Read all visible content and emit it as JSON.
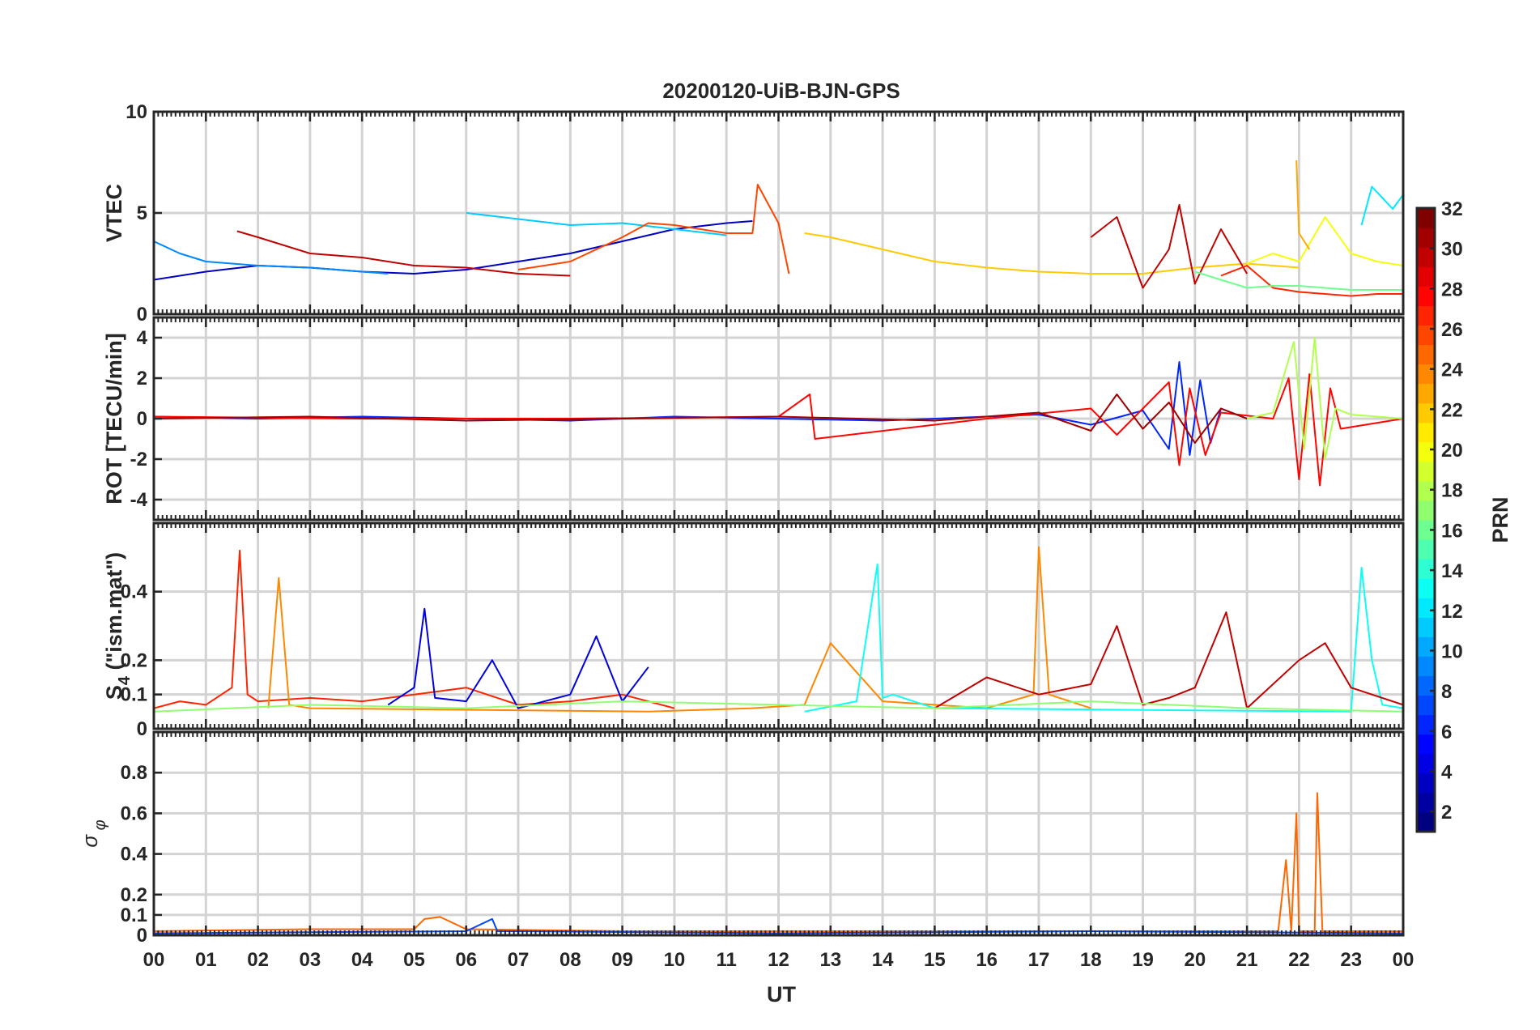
{
  "chart_data": {
    "type": "line",
    "title": "20200120-UiB-BJN-GPS",
    "xlabel": "UT",
    "x_tick_labels": [
      "00",
      "01",
      "02",
      "03",
      "04",
      "05",
      "06",
      "07",
      "08",
      "09",
      "10",
      "11",
      "12",
      "13",
      "14",
      "15",
      "16",
      "17",
      "18",
      "19",
      "20",
      "21",
      "22",
      "23",
      "00"
    ],
    "xlim": [
      0,
      24
    ],
    "grid": true,
    "panels": [
      {
        "name": "vtec",
        "ylabel": "VTEC",
        "ylim": [
          0,
          10
        ],
        "yticks": [
          0,
          5,
          10
        ],
        "series": [
          {
            "prn": 3,
            "x": [
              0,
              1,
              2,
              3,
              4,
              5,
              6,
              7,
              8,
              9,
              10,
              11,
              11.5
            ],
            "y": [
              1.7,
              2.1,
              2.4,
              2.3,
              2.1,
              2.0,
              2.2,
              2.6,
              3.0,
              3.6,
              4.2,
              4.5,
              4.6
            ]
          },
          {
            "prn": 9,
            "x": [
              0,
              0.5,
              1,
              2,
              3,
              4,
              4.5
            ],
            "y": [
              3.6,
              3.0,
              2.6,
              2.4,
              2.3,
              2.1,
              2.0
            ]
          },
          {
            "prn": 11,
            "x": [
              6,
              7,
              8,
              9,
              10,
              11
            ],
            "y": [
              5.0,
              4.7,
              4.4,
              4.5,
              4.2,
              3.9
            ]
          },
          {
            "prn": 30,
            "x": [
              1.6,
              2,
              3,
              4,
              5,
              6,
              7,
              8
            ],
            "y": [
              4.1,
              3.8,
              3.0,
              2.8,
              2.4,
              2.3,
              2.0,
              1.9
            ]
          },
          {
            "prn": 26,
            "x": [
              7,
              8,
              9,
              9.5,
              10,
              11,
              11.5,
              11.6,
              12,
              12.2
            ],
            "y": [
              2.2,
              2.6,
              3.8,
              4.5,
              4.4,
              4.0,
              4.0,
              6.4,
              4.5,
              2.0
            ]
          },
          {
            "prn": 22,
            "x": [
              12.5,
              13,
              14,
              15,
              16,
              17,
              18,
              19,
              20,
              21,
              21.5,
              22
            ],
            "y": [
              4.0,
              3.8,
              3.2,
              2.6,
              2.3,
              2.1,
              2.0,
              2.0,
              2.3,
              2.5,
              2.4,
              2.3
            ]
          },
          {
            "prn": 30,
            "x": [
              18,
              18.5,
              19,
              19.5,
              19.7,
              20,
              20.5,
              21
            ],
            "y": [
              3.8,
              4.8,
              1.3,
              3.2,
              5.4,
              1.5,
              4.2,
              2.0
            ]
          },
          {
            "prn": 20,
            "x": [
              21,
              21.5,
              22,
              22.5,
              23,
              23.5,
              24
            ],
            "y": [
              2.5,
              3.0,
              2.6,
              4.8,
              3.0,
              2.6,
              2.4
            ]
          },
          {
            "prn": 23,
            "x": [
              21.95,
              22.0,
              22.2
            ],
            "y": [
              7.6,
              4.0,
              3.2
            ]
          },
          {
            "prn": 12,
            "x": [
              23.2,
              23.4,
              23.8,
              24
            ],
            "y": [
              4.4,
              6.3,
              5.2,
              5.9
            ]
          },
          {
            "prn": 27,
            "x": [
              20.5,
              21,
              21.5,
              22,
              22.5,
              23,
              23.5,
              24
            ],
            "y": [
              1.9,
              2.4,
              1.3,
              1.1,
              1.0,
              0.9,
              1.0,
              1.0
            ]
          },
          {
            "prn": 16,
            "x": [
              20,
              20.5,
              21,
              21.5,
              22,
              22.5,
              23,
              24
            ],
            "y": [
              2.1,
              1.7,
              1.3,
              1.4,
              1.4,
              1.3,
              1.2,
              1.2
            ]
          }
        ]
      },
      {
        "name": "rot",
        "ylabel": "ROT [TECU/min]",
        "ylim": [
          -5,
          5
        ],
        "yticks": [
          -4,
          -2,
          0,
          2,
          4
        ],
        "series": [
          {
            "prn": 6,
            "x": [
              0,
              2,
              4,
              6,
              8,
              10,
              12,
              14,
              16,
              17,
              18,
              19,
              19.5,
              19.7,
              19.9,
              20.1,
              20.3,
              20.5,
              21
            ],
            "y": [
              0.1,
              0.0,
              0.1,
              0.0,
              -0.1,
              0.1,
              0.0,
              -0.1,
              0.1,
              0.2,
              -0.3,
              0.4,
              -1.5,
              2.8,
              -1.8,
              1.9,
              -1.2,
              0.5,
              0.0
            ]
          },
          {
            "prn": 28,
            "x": [
              0,
              4,
              8,
              12,
              12.6,
              12.7,
              16,
              18,
              18.5,
              19.5,
              19.7,
              19.9,
              20.2,
              20.5,
              21.5,
              21.8,
              22,
              22.2,
              22.4,
              22.6,
              22.8,
              24
            ],
            "y": [
              0.1,
              0.0,
              0.0,
              0.1,
              1.2,
              -1.0,
              0.0,
              0.5,
              -0.8,
              1.8,
              -2.3,
              1.5,
              -1.8,
              0.3,
              0.0,
              2.0,
              -3.0,
              2.2,
              -3.3,
              1.5,
              -0.5,
              0.0
            ]
          },
          {
            "prn": 18,
            "x": [
              21,
              21.5,
              21.9,
              22.1,
              22.3,
              22.5,
              22.7,
              23,
              24
            ],
            "y": [
              0.0,
              0.3,
              3.8,
              -1.5,
              4.0,
              -2.0,
              0.5,
              0.2,
              0.0
            ]
          },
          {
            "prn": 31,
            "x": [
              0,
              3,
              6,
              9,
              12,
              15,
              17,
              18,
              18.5,
              19,
              19.5,
              20,
              20.5,
              21
            ],
            "y": [
              0.0,
              0.1,
              -0.1,
              0.0,
              0.1,
              -0.1,
              0.3,
              -0.6,
              1.2,
              -0.5,
              0.8,
              -1.2,
              0.5,
              0.0
            ]
          }
        ]
      },
      {
        "name": "s4",
        "ylabel": "S4 (\"ism.mat\")",
        "ylim": [
          0,
          0.6
        ],
        "yticks": [
          0,
          0.1,
          0.2,
          0.4
        ],
        "series": [
          {
            "prn": 27,
            "x": [
              0,
              0.5,
              1,
              1.5,
              1.65,
              1.8,
              2,
              3,
              4,
              5,
              6,
              7,
              8,
              9,
              10
            ],
            "y": [
              0.06,
              0.08,
              0.07,
              0.12,
              0.52,
              0.1,
              0.08,
              0.09,
              0.08,
              0.1,
              0.12,
              0.07,
              0.08,
              0.1,
              0.06
            ]
          },
          {
            "prn": 4,
            "x": [
              4.5,
              5,
              5.2,
              5.4,
              6,
              6.5,
              7,
              8,
              8.5,
              9,
              9.5
            ],
            "y": [
              0.07,
              0.12,
              0.35,
              0.09,
              0.08,
              0.2,
              0.06,
              0.1,
              0.27,
              0.08,
              0.18
            ]
          },
          {
            "prn": 24,
            "x": [
              2.2,
              2.4,
              2.6,
              3,
              9.5,
              11.5,
              12.5,
              13,
              14,
              16,
              16.9,
              17,
              17.2,
              18
            ],
            "y": [
              0.06,
              0.44,
              0.07,
              0.06,
              0.05,
              0.06,
              0.07,
              0.25,
              0.08,
              0.06,
              0.1,
              0.53,
              0.1,
              0.06
            ]
          },
          {
            "prn": 13,
            "x": [
              12.5,
              13.5,
              13.9,
              14,
              14.2,
              15,
              23,
              23.2,
              23.4,
              23.6,
              24
            ],
            "y": [
              0.05,
              0.08,
              0.48,
              0.09,
              0.1,
              0.06,
              0.05,
              0.47,
              0.2,
              0.07,
              0.06
            ]
          },
          {
            "prn": 30,
            "x": [
              15,
              16,
              17,
              18,
              18.5,
              19,
              19.5,
              20,
              20.6,
              21,
              22,
              22.5,
              23,
              24
            ],
            "y": [
              0.06,
              0.15,
              0.1,
              0.13,
              0.3,
              0.07,
              0.09,
              0.12,
              0.34,
              0.06,
              0.2,
              0.25,
              0.12,
              0.07
            ]
          },
          {
            "prn": 17,
            "x": [
              0,
              3,
              6,
              9,
              12,
              15,
              18,
              21,
              24
            ],
            "y": [
              0.05,
              0.07,
              0.06,
              0.08,
              0.07,
              0.06,
              0.08,
              0.06,
              0.05
            ]
          }
        ]
      },
      {
        "name": "sigma_phi",
        "ylabel": "σ φ",
        "ylim": [
          0,
          1
        ],
        "yticks": [
          0,
          0.1,
          0.2,
          0.4,
          0.6,
          0.8
        ],
        "series": [
          {
            "prn": 25,
            "x": [
              0,
              3,
              5,
              5.2,
              5.5,
              6,
              9,
              12,
              15,
              18,
              21,
              21.6,
              21.75,
              21.85,
              21.95,
              22,
              22.3,
              22.35,
              22.45,
              22.5,
              23,
              24
            ],
            "y": [
              0.02,
              0.03,
              0.03,
              0.08,
              0.09,
              0.03,
              0.02,
              0.02,
              0.02,
              0.02,
              0.02,
              0.02,
              0.37,
              0.02,
              0.6,
              0.02,
              0.02,
              0.7,
              0.02,
              0.02,
              0.02,
              0.02
            ]
          },
          {
            "prn": 7,
            "x": [
              0,
              6,
              6.5,
              6.6,
              7,
              12,
              18,
              24
            ],
            "y": [
              0.01,
              0.02,
              0.08,
              0.02,
              0.02,
              0.01,
              0.02,
              0.01
            ]
          }
        ]
      }
    ],
    "colorbar": {
      "label": "PRN",
      "colormap": "jet",
      "range": [
        1,
        32
      ],
      "ticks": [
        2,
        4,
        6,
        8,
        10,
        12,
        14,
        16,
        18,
        20,
        22,
        24,
        26,
        28,
        30,
        32
      ]
    }
  }
}
